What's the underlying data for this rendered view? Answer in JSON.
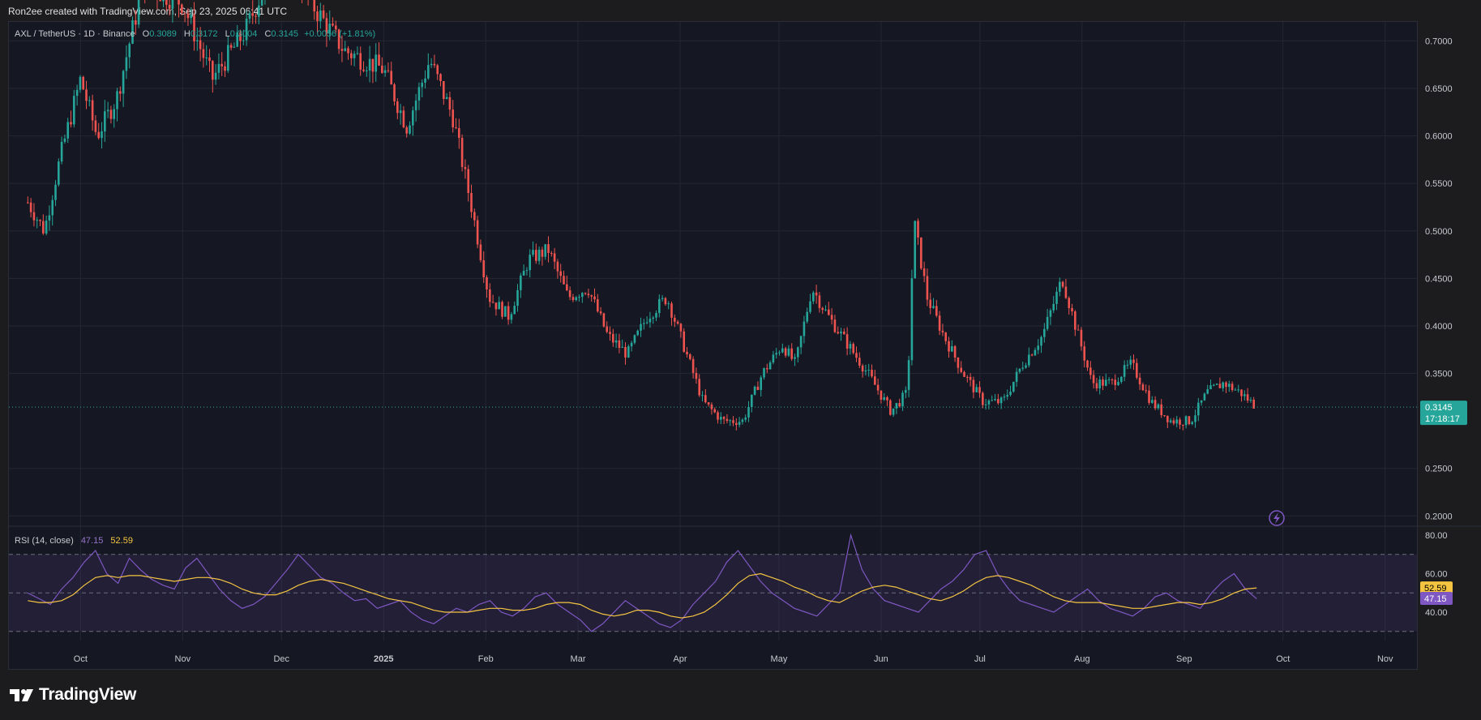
{
  "header": {
    "credit": "Ron2ee created with TradingView.com, Sep 23, 2025 06:41 UTC"
  },
  "legend": {
    "symbol": "AXL / TetherUS · 1D · Binance",
    "open_label": "O",
    "open": "0.3089",
    "high_label": "H",
    "high": "0.3172",
    "low_label": "L",
    "low": "0.3004",
    "close_label": "C",
    "close": "0.3145",
    "change": "+0.0056 (+1.81%)"
  },
  "price_badge": {
    "price": "0.3145",
    "countdown": "17:18:17"
  },
  "rsi": {
    "title": "RSI (14, close)",
    "rsi_value": "47.15",
    "ma_value": "52.59",
    "rsi_num": 47.15,
    "ma_num": 52.59
  },
  "brand": {
    "name": "TradingView"
  },
  "colors": {
    "up": "#26a69a",
    "down": "#ef5350",
    "rsi": "#7e57c2",
    "rsi_ma": "#f5c542",
    "background": "#151822"
  },
  "chart_data": [
    {
      "type": "candlestick",
      "title": "AXL / TetherUS · 1D · Binance",
      "ylim": [
        0.2,
        0.72
      ],
      "y_ticks": [
        "0.7000",
        "0.6500",
        "0.6000",
        "0.5500",
        "0.5000",
        "0.4500",
        "0.4000",
        "0.3500",
        "0.2500",
        "0.2000"
      ],
      "x_ticks": [
        "Oct",
        "Nov",
        "Dec",
        "2025",
        "Feb",
        "Mar",
        "Apr",
        "May",
        "Jun",
        "Jul",
        "Aug",
        "Sep",
        "Oct",
        "Nov"
      ],
      "last_price": 0.3145,
      "approx_closes": [
        {
          "x": "2024-09-15",
          "y": 0.53
        },
        {
          "x": "2024-09-20",
          "y": 0.5
        },
        {
          "x": "2024-09-25",
          "y": 0.58
        },
        {
          "x": "2024-10-01",
          "y": 0.66
        },
        {
          "x": "2024-10-06",
          "y": 0.6
        },
        {
          "x": "2024-10-12",
          "y": 0.64
        },
        {
          "x": "2024-10-20",
          "y": 0.76
        },
        {
          "x": "2024-11-01",
          "y": 0.74
        },
        {
          "x": "2024-11-10",
          "y": 0.66
        },
        {
          "x": "2024-11-20",
          "y": 0.71
        },
        {
          "x": "2024-12-01",
          "y": 0.8
        },
        {
          "x": "2024-12-10",
          "y": 0.74
        },
        {
          "x": "2024-12-20",
          "y": 0.69
        },
        {
          "x": "2025-01-01",
          "y": 0.67
        },
        {
          "x": "2025-01-08",
          "y": 0.61
        },
        {
          "x": "2025-01-15",
          "y": 0.68
        },
        {
          "x": "2025-01-22",
          "y": 0.62
        },
        {
          "x": "2025-01-28",
          "y": 0.52
        },
        {
          "x": "2025-02-02",
          "y": 0.43
        },
        {
          "x": "2025-02-08",
          "y": 0.41
        },
        {
          "x": "2025-02-14",
          "y": 0.47
        },
        {
          "x": "2025-02-20",
          "y": 0.48
        },
        {
          "x": "2025-02-26",
          "y": 0.43
        },
        {
          "x": "2025-03-04",
          "y": 0.44
        },
        {
          "x": "2025-03-10",
          "y": 0.39
        },
        {
          "x": "2025-03-16",
          "y": 0.37
        },
        {
          "x": "2025-03-22",
          "y": 0.41
        },
        {
          "x": "2025-03-28",
          "y": 0.43
        },
        {
          "x": "2025-04-03",
          "y": 0.37
        },
        {
          "x": "2025-04-08",
          "y": 0.32
        },
        {
          "x": "2025-04-14",
          "y": 0.3
        },
        {
          "x": "2025-04-20",
          "y": 0.3
        },
        {
          "x": "2025-04-26",
          "y": 0.35
        },
        {
          "x": "2025-05-02",
          "y": 0.38
        },
        {
          "x": "2025-05-06",
          "y": 0.36
        },
        {
          "x": "2025-05-11",
          "y": 0.44
        },
        {
          "x": "2025-05-16",
          "y": 0.41
        },
        {
          "x": "2025-05-22",
          "y": 0.38
        },
        {
          "x": "2025-05-28",
          "y": 0.35
        },
        {
          "x": "2025-06-04",
          "y": 0.31
        },
        {
          "x": "2025-06-09",
          "y": 0.33
        },
        {
          "x": "2025-06-11",
          "y": 0.51
        },
        {
          "x": "2025-06-15",
          "y": 0.43
        },
        {
          "x": "2025-06-20",
          "y": 0.39
        },
        {
          "x": "2025-06-26",
          "y": 0.35
        },
        {
          "x": "2025-07-02",
          "y": 0.32
        },
        {
          "x": "2025-07-08",
          "y": 0.32
        },
        {
          "x": "2025-07-14",
          "y": 0.36
        },
        {
          "x": "2025-07-20",
          "y": 0.39
        },
        {
          "x": "2025-07-26",
          "y": 0.45
        },
        {
          "x": "2025-07-30",
          "y": 0.4
        },
        {
          "x": "2025-08-04",
          "y": 0.34
        },
        {
          "x": "2025-08-10",
          "y": 0.34
        },
        {
          "x": "2025-08-16",
          "y": 0.36
        },
        {
          "x": "2025-08-22",
          "y": 0.32
        },
        {
          "x": "2025-08-28",
          "y": 0.3
        },
        {
          "x": "2025-09-03",
          "y": 0.3
        },
        {
          "x": "2025-09-08",
          "y": 0.33
        },
        {
          "x": "2025-09-13",
          "y": 0.34
        },
        {
          "x": "2025-09-18",
          "y": 0.33
        },
        {
          "x": "2025-09-23",
          "y": 0.3145
        }
      ]
    },
    {
      "type": "line",
      "title": "RSI (14, close)",
      "ylim": [
        28,
        82
      ],
      "y_ticks": [
        "80.00",
        "60.00",
        "40.00"
      ],
      "bands": [
        30,
        70
      ],
      "series": [
        {
          "name": "RSI",
          "values": [
            50,
            47,
            44,
            52,
            58,
            66,
            72,
            60,
            55,
            68,
            62,
            57,
            54,
            52,
            63,
            68,
            60,
            52,
            46,
            42,
            44,
            48,
            55,
            62,
            70,
            64,
            58,
            55,
            50,
            46,
            47,
            42,
            44,
            46,
            40,
            36,
            34,
            38,
            42,
            40,
            44,
            46,
            40,
            38,
            42,
            48,
            50,
            44,
            40,
            36,
            30,
            34,
            40,
            46,
            42,
            38,
            34,
            32,
            36,
            44,
            50,
            56,
            66,
            72,
            64,
            56,
            50,
            46,
            42,
            40,
            38,
            44,
            50,
            80,
            62,
            52,
            46,
            44,
            42,
            40,
            46,
            52,
            56,
            62,
            70,
            72,
            60,
            52,
            46,
            44,
            42,
            40,
            44,
            48,
            52,
            46,
            42,
            40,
            38,
            42,
            48,
            50,
            46,
            44,
            42,
            50,
            56,
            60,
            52,
            47
          ]
        },
        {
          "name": "RSI MA",
          "values": [
            46,
            45,
            45,
            46,
            49,
            54,
            58,
            59,
            58,
            59,
            59,
            58,
            57,
            56,
            57,
            58,
            58,
            57,
            55,
            52,
            50,
            49,
            49,
            51,
            54,
            56,
            57,
            56,
            55,
            53,
            51,
            49,
            47,
            46,
            45,
            43,
            41,
            40,
            40,
            40,
            41,
            42,
            42,
            41,
            41,
            42,
            44,
            45,
            45,
            44,
            41,
            39,
            38,
            39,
            41,
            41,
            40,
            38,
            37,
            38,
            40,
            44,
            49,
            55,
            59,
            60,
            58,
            56,
            53,
            51,
            48,
            46,
            45,
            48,
            51,
            53,
            54,
            53,
            51,
            49,
            47,
            46,
            48,
            51,
            55,
            58,
            59,
            58,
            56,
            54,
            51,
            48,
            46,
            45,
            45,
            45,
            44,
            43,
            42,
            42,
            43,
            44,
            45,
            45,
            44,
            45,
            47,
            50,
            52,
            52.59
          ]
        }
      ]
    }
  ]
}
